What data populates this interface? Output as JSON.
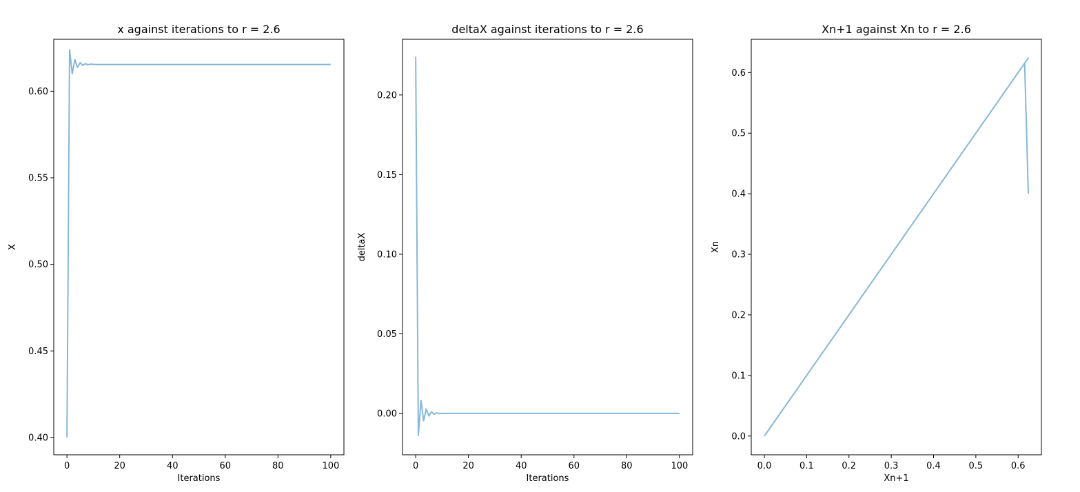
{
  "chart_data": [
    {
      "type": "line",
      "title": "x against iterations to r = 2.6",
      "xlabel": "Iterations",
      "ylabel": "X",
      "xlim": [
        -5,
        105
      ],
      "ylim": [
        0.39,
        0.63
      ],
      "xticks": [
        0,
        20,
        40,
        60,
        80,
        100
      ],
      "xtick_labels": [
        "0",
        "20",
        "40",
        "60",
        "80",
        "100"
      ],
      "yticks": [
        0.4,
        0.45,
        0.5,
        0.55,
        0.6
      ],
      "ytick_labels": [
        "0.40",
        "0.45",
        "0.50",
        "0.55",
        "0.60"
      ],
      "grid": false,
      "color": "#86b7d8",
      "series": [
        {
          "x": [
            0,
            1,
            2,
            3,
            4,
            5,
            6,
            7,
            8,
            9,
            10,
            11,
            12,
            100
          ],
          "y": [
            0.4,
            0.624,
            0.6101,
            0.6183,
            0.6137,
            0.6165,
            0.6149,
            0.6159,
            0.6153,
            0.6157,
            0.6155,
            0.6154,
            0.6154,
            0.6154
          ]
        }
      ]
    },
    {
      "type": "line",
      "title": "deltaX against iterations to r = 2.6",
      "xlabel": "Iterations",
      "ylabel": "deltaX",
      "xlim": [
        -5,
        105
      ],
      "ylim": [
        -0.026,
        0.235
      ],
      "xticks": [
        0,
        20,
        40,
        60,
        80,
        100
      ],
      "xtick_labels": [
        "0",
        "20",
        "40",
        "60",
        "80",
        "100"
      ],
      "yticks": [
        0.0,
        0.05,
        0.1,
        0.15,
        0.2
      ],
      "ytick_labels": [
        "0.00",
        "0.05",
        "0.10",
        "0.15",
        "0.20"
      ],
      "grid": false,
      "color": "#86b7d8",
      "series": [
        {
          "x": [
            0,
            1,
            2,
            3,
            4,
            5,
            6,
            7,
            8,
            9,
            10,
            11,
            12,
            100
          ],
          "y": [
            0.224,
            -0.0139,
            0.0082,
            -0.0046,
            0.0028,
            -0.0016,
            0.001,
            -0.0006,
            0.0004,
            -0.0002,
            0.0001,
            0,
            0,
            0
          ]
        }
      ]
    },
    {
      "type": "line",
      "title": "Xn+1 against Xn to r = 2.6",
      "xlabel": "Xn+1",
      "ylabel": "Xn",
      "xlim": [
        -0.031,
        0.655
      ],
      "ylim": [
        -0.031,
        0.655
      ],
      "xticks": [
        0.0,
        0.1,
        0.2,
        0.3,
        0.4,
        0.5,
        0.6
      ],
      "xtick_labels": [
        "0.0",
        "0.1",
        "0.2",
        "0.3",
        "0.4",
        "0.5",
        "0.6"
      ],
      "yticks": [
        0.0,
        0.1,
        0.2,
        0.3,
        0.4,
        0.5,
        0.6
      ],
      "ytick_labels": [
        "0.0",
        "0.1",
        "0.2",
        "0.3",
        "0.4",
        "0.5",
        "0.6"
      ],
      "grid": false,
      "color": "#86b7d8",
      "series": [
        {
          "x": [
            0,
            0.6101,
            0.624,
            0.6101,
            0.6183,
            0.6137,
            0.6165,
            0.6154,
            0.624
          ],
          "y": [
            0,
            0.6101,
            0.624,
            0.6101,
            0.6183,
            0.6137,
            0.6165,
            0.6154,
            0.4
          ]
        }
      ]
    }
  ]
}
